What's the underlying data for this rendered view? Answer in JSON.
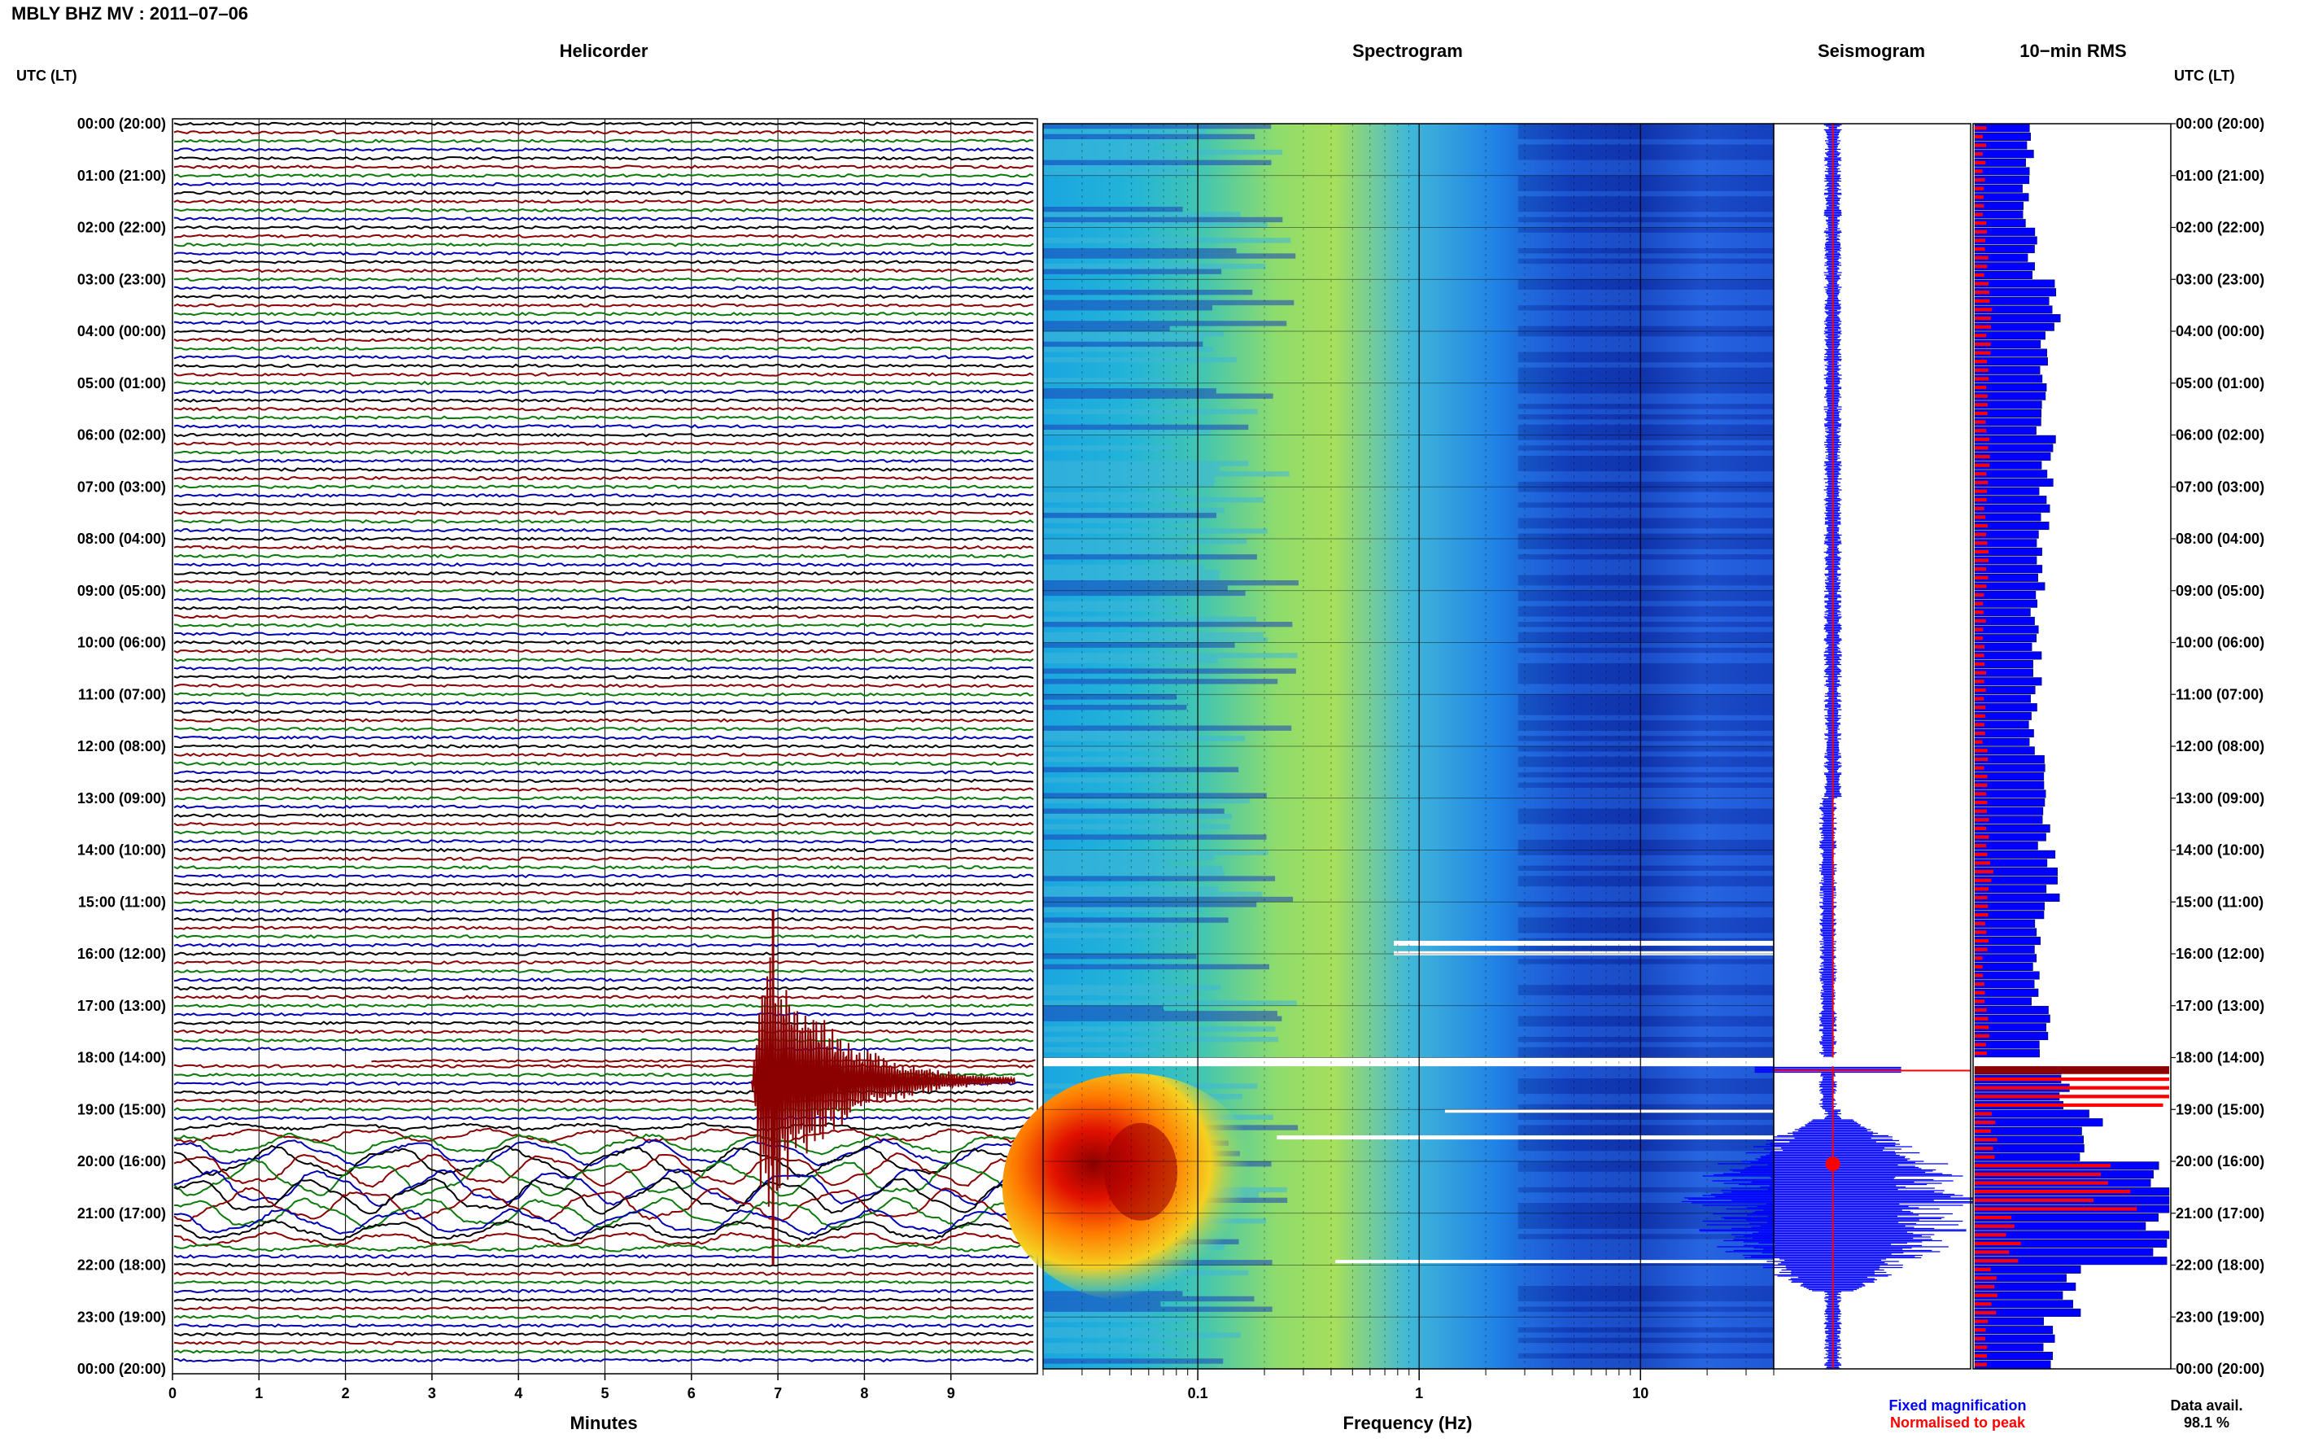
{
  "header": {
    "title": "MBLY BHZ MV : 2011–07–06"
  },
  "panels": {
    "helicorder": "Helicorder",
    "spectrogram": "Spectrogram",
    "seismogram": "Seismogram",
    "rms": "10−min RMS"
  },
  "axis": {
    "left_header": "UTC (LT)",
    "right_header": "UTC (LT)",
    "time_labels": [
      "00:00 (20:00)",
      "01:00 (21:00)",
      "02:00 (22:00)",
      "03:00 (23:00)",
      "04:00 (00:00)",
      "05:00 (01:00)",
      "06:00 (02:00)",
      "07:00 (03:00)",
      "08:00 (04:00)",
      "09:00 (05:00)",
      "10:00 (06:00)",
      "11:00 (07:00)",
      "12:00 (08:00)",
      "13:00 (09:00)",
      "14:00 (10:00)",
      "15:00 (11:00)",
      "16:00 (12:00)",
      "17:00 (13:00)",
      "18:00 (14:00)",
      "19:00 (15:00)",
      "20:00 (16:00)",
      "21:00 (17:00)",
      "22:00 (18:00)",
      "23:00 (19:00)",
      "00:00 (20:00)"
    ],
    "minutes_label": "Minutes",
    "minutes_ticks": [
      "0",
      "1",
      "2",
      "3",
      "4",
      "5",
      "6",
      "7",
      "8",
      "9"
    ],
    "frequency_label": "Frequency (Hz)",
    "frequency_ticks": [
      "0.1",
      "1",
      "10"
    ]
  },
  "footer": {
    "fixed": "Fixed magnification",
    "normalised": "Normalised to peak",
    "data_avail_label": "Data avail.",
    "data_avail_value": "98.1 %"
  },
  "colors": {
    "trace_colors": [
      "#000000",
      "#8b0000",
      "#0b7a0b",
      "#0000b4"
    ],
    "fixed": "#0000ff",
    "normalised": "#ff0000",
    "spectrogram_low": "#0a1fa0",
    "spectrogram_high": "#ff2000"
  },
  "chart_data": [
    {
      "type": "line",
      "title": "Helicorder",
      "xlabel": "Minutes",
      "xlim": [
        0,
        10
      ],
      "rows_per_hour": 6,
      "gap_utc_hours": [
        18.0,
        18.1667
      ],
      "event_utc_hour": 17.5,
      "event_minute": 7.0,
      "high_amplitude_window_utc_hours": [
        19.2,
        21.8
      ]
    },
    {
      "type": "heatmap",
      "title": "Spectrogram",
      "xlabel": "Frequency (Hz)",
      "xscale": "log",
      "xlim": [
        0.02,
        40
      ],
      "hot_band": {
        "freq_hz": [
          0.025,
          0.1
        ],
        "utc_hours": [
          19.5,
          22.0
        ]
      }
    },
    {
      "type": "bar",
      "title": "10−min RMS",
      "orientation": "horizontal",
      "hour_labels": [
        "00",
        "01",
        "02",
        "03",
        "04",
        "05",
        "06",
        "07",
        "08",
        "09",
        "10",
        "11",
        "12",
        "13",
        "14",
        "15",
        "16",
        "17",
        "18",
        "19",
        "20",
        "21",
        "22",
        "23"
      ],
      "series": [
        {
          "name": "Fixed magnification",
          "values_relative": [
            0.28,
            0.26,
            0.3,
            0.42,
            0.36,
            0.34,
            0.38,
            0.36,
            0.34,
            0.3,
            0.32,
            0.3,
            0.34,
            0.36,
            0.4,
            0.34,
            0.32,
            0.36,
            0.45,
            0.6,
            1.0,
            0.92,
            0.5,
            0.38
          ]
        },
        {
          "name": "Normalised to peak",
          "values_relative": [
            0.05,
            0.05,
            0.06,
            0.08,
            0.07,
            0.06,
            0.07,
            0.06,
            0.06,
            0.05,
            0.06,
            0.05,
            0.06,
            0.07,
            0.08,
            0.06,
            0.05,
            0.07,
            1.0,
            0.1,
            0.7,
            0.2,
            0.1,
            0.06
          ]
        }
      ]
    }
  ]
}
